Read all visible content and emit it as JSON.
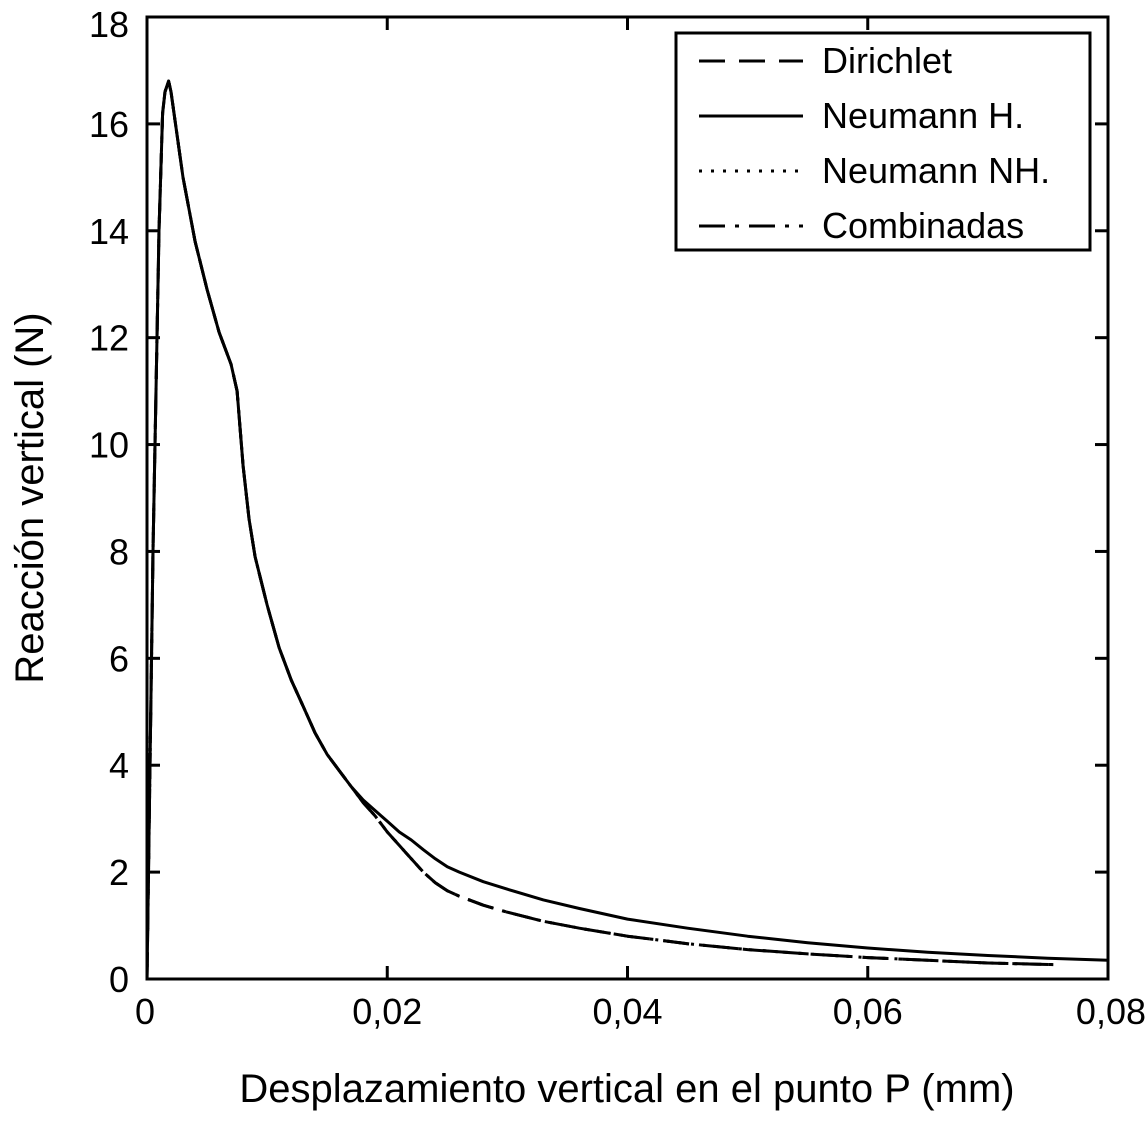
{
  "chart_data": {
    "type": "line",
    "title": "",
    "xlabel": "Desplazamiento vertical en el punto P (mm)",
    "ylabel": "Reacción vertical (N)",
    "xlim": [
      0,
      0.08
    ],
    "ylim": [
      0,
      18
    ],
    "xticks": [
      0,
      0.02,
      0.04,
      0.06,
      0.08
    ],
    "xtick_labels": [
      "0",
      "0,02",
      "0,04",
      "0,06",
      "0,08"
    ],
    "yticks": [
      0,
      2,
      4,
      6,
      8,
      10,
      12,
      14,
      16,
      18
    ],
    "ytick_labels": [
      "0",
      "2",
      "4",
      "6",
      "8",
      "10",
      "12",
      "14",
      "16",
      "18"
    ],
    "grid": false,
    "legend_position": "top-right",
    "line_color": "#000000",
    "series": [
      {
        "name": "Dirichlet",
        "style": "dashed",
        "x": [
          0,
          0.0005,
          0.001,
          0.0013,
          0.0015,
          0.0018,
          0.002,
          0.0025,
          0.003,
          0.004,
          0.005,
          0.006,
          0.007,
          0.0075,
          0.008,
          0.0085,
          0.009,
          0.01,
          0.011,
          0.012,
          0.013,
          0.014,
          0.015,
          0.016,
          0.017,
          0.018,
          0.019,
          0.02,
          0.021,
          0.022,
          0.023,
          0.024,
          0.025,
          0.026,
          0.028,
          0.03,
          0.033,
          0.036,
          0.04,
          0.045,
          0.05,
          0.055,
          0.06,
          0.065,
          0.07,
          0.0755
        ],
        "y": [
          0,
          8,
          14,
          16.2,
          16.6,
          16.8,
          16.6,
          15.8,
          15.0,
          13.8,
          12.9,
          12.1,
          11.5,
          11.0,
          9.6,
          8.6,
          7.9,
          7.0,
          6.2,
          5.6,
          5.1,
          4.6,
          4.2,
          3.9,
          3.6,
          3.3,
          3.05,
          2.75,
          2.5,
          2.25,
          2.0,
          1.8,
          1.65,
          1.55,
          1.38,
          1.25,
          1.08,
          0.95,
          0.8,
          0.66,
          0.55,
          0.47,
          0.4,
          0.35,
          0.3,
          0.27
        ]
      },
      {
        "name": "Neumann H.",
        "style": "solid",
        "x": [
          0,
          0.0005,
          0.001,
          0.0013,
          0.0015,
          0.0018,
          0.002,
          0.0025,
          0.003,
          0.004,
          0.005,
          0.006,
          0.007,
          0.0075,
          0.008,
          0.0085,
          0.009,
          0.01,
          0.011,
          0.012,
          0.013,
          0.014,
          0.015,
          0.016,
          0.017,
          0.018,
          0.019,
          0.02,
          0.021,
          0.022,
          0.023,
          0.024,
          0.025,
          0.026,
          0.028,
          0.03,
          0.033,
          0.036,
          0.04,
          0.045,
          0.05,
          0.055,
          0.06,
          0.065,
          0.07,
          0.075,
          0.08
        ],
        "y": [
          0,
          8,
          14,
          16.2,
          16.6,
          16.8,
          16.6,
          15.8,
          15.0,
          13.8,
          12.9,
          12.1,
          11.5,
          11.0,
          9.6,
          8.6,
          7.9,
          7.0,
          6.2,
          5.6,
          5.1,
          4.6,
          4.2,
          3.9,
          3.6,
          3.35,
          3.15,
          2.95,
          2.75,
          2.6,
          2.42,
          2.25,
          2.1,
          2.0,
          1.82,
          1.68,
          1.48,
          1.32,
          1.12,
          0.95,
          0.8,
          0.68,
          0.58,
          0.5,
          0.44,
          0.39,
          0.35
        ]
      },
      {
        "name": "Neumann NH.",
        "style": "dotted",
        "x": [
          0,
          0.0005,
          0.001,
          0.0013,
          0.0015,
          0.0018,
          0.002,
          0.0025,
          0.003,
          0.004,
          0.005,
          0.006,
          0.007,
          0.0075,
          0.008,
          0.0085,
          0.009,
          0.01,
          0.011,
          0.012,
          0.013,
          0.014,
          0.015,
          0.016,
          0.017,
          0.018,
          0.019,
          0.02,
          0.021,
          0.022,
          0.023,
          0.024,
          0.025,
          0.026,
          0.028,
          0.03,
          0.033,
          0.036,
          0.04,
          0.045,
          0.05,
          0.055,
          0.06,
          0.065,
          0.07,
          0.0755
        ],
        "y": [
          0,
          8,
          14,
          16.2,
          16.6,
          16.8,
          16.6,
          15.8,
          15.0,
          13.8,
          12.9,
          12.1,
          11.5,
          11.0,
          9.6,
          8.6,
          7.9,
          7.0,
          6.2,
          5.6,
          5.1,
          4.6,
          4.2,
          3.9,
          3.6,
          3.3,
          3.05,
          2.75,
          2.5,
          2.25,
          2.0,
          1.8,
          1.65,
          1.55,
          1.38,
          1.25,
          1.08,
          0.95,
          0.8,
          0.66,
          0.55,
          0.47,
          0.4,
          0.35,
          0.3,
          0.27
        ]
      },
      {
        "name": "Combinadas",
        "style": "dashdot",
        "x": [
          0,
          0.0005,
          0.001,
          0.0013,
          0.0015,
          0.0018,
          0.002,
          0.0025,
          0.003,
          0.004,
          0.005,
          0.006,
          0.007,
          0.0075,
          0.008,
          0.0085,
          0.009,
          0.01,
          0.011,
          0.012,
          0.013,
          0.014,
          0.015,
          0.016,
          0.017,
          0.018,
          0.019,
          0.02,
          0.021,
          0.022,
          0.023,
          0.024,
          0.025,
          0.026,
          0.028,
          0.03,
          0.033,
          0.036,
          0.04,
          0.045,
          0.05,
          0.055,
          0.06,
          0.065,
          0.07,
          0.0755
        ],
        "y": [
          0,
          8,
          14,
          16.2,
          16.6,
          16.8,
          16.6,
          15.8,
          15.0,
          13.8,
          12.9,
          12.1,
          11.5,
          11.0,
          9.6,
          8.6,
          7.9,
          7.0,
          6.2,
          5.6,
          5.1,
          4.6,
          4.2,
          3.9,
          3.6,
          3.3,
          3.05,
          2.75,
          2.5,
          2.25,
          2.0,
          1.8,
          1.65,
          1.55,
          1.38,
          1.25,
          1.08,
          0.95,
          0.8,
          0.66,
          0.55,
          0.47,
          0.4,
          0.35,
          0.3,
          0.27
        ]
      }
    ]
  }
}
